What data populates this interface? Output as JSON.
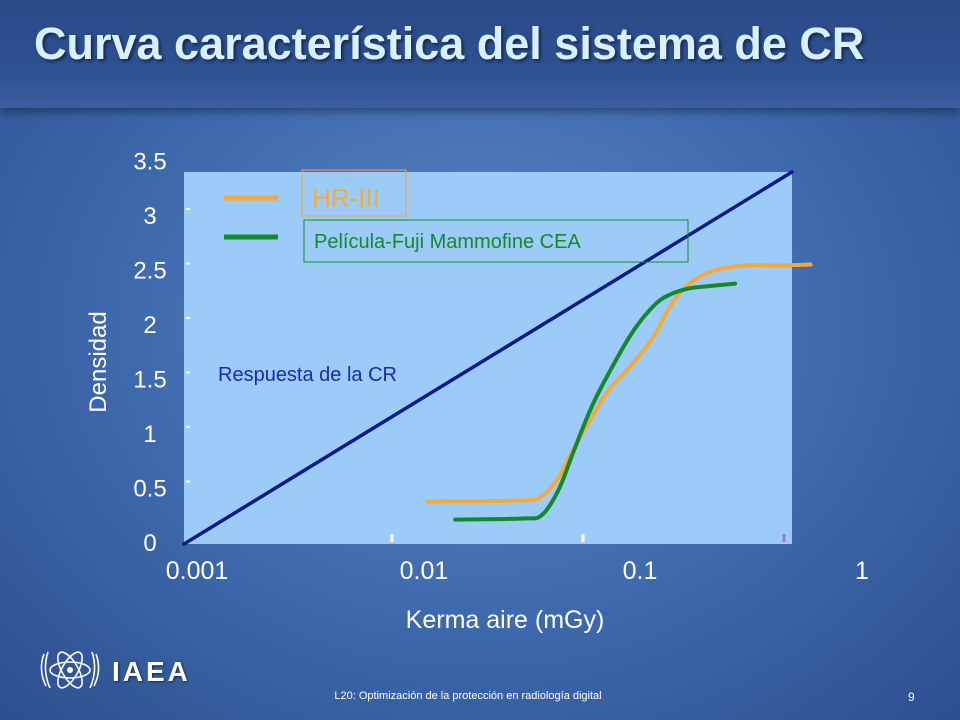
{
  "slide": {
    "title": "Curva característica del sistema de CR",
    "footer": "L20: Optimización de la protección en radiología digital",
    "page_number": "9",
    "logo_text": "IAEA"
  },
  "colors": {
    "plot_background": "#9ccbf7",
    "cr_line": "#0b1a8a",
    "hr3": "#f5a93a",
    "fuji": "#128a2c",
    "annotation_text": "#1a2ab0"
  },
  "chart_data": {
    "type": "line",
    "xscale": "log",
    "xlabel": "Kerma aire (mGy)",
    "ylabel": "Densidad",
    "xlim": [
      0.001,
      0.1
    ],
    "ylim": [
      0,
      3.5
    ],
    "xticks": [
      "0.001",
      "0.01",
      "0.1",
      "1"
    ],
    "yticks": [
      "0",
      "0.5",
      "1",
      "1.5",
      "2",
      "2.5",
      "3",
      "3.5"
    ],
    "legend_position": "top-left",
    "series": [
      {
        "name": "HR-III",
        "color": "#f5a93a",
        "points": [
          [
            0.0063,
            0.4
          ],
          [
            0.013,
            0.41
          ],
          [
            0.015,
            0.45
          ],
          [
            0.017,
            0.62
          ],
          [
            0.019,
            0.88
          ],
          [
            0.022,
            1.2
          ],
          [
            0.025,
            1.45
          ],
          [
            0.03,
            1.7
          ],
          [
            0.035,
            1.95
          ],
          [
            0.04,
            2.25
          ],
          [
            0.046,
            2.45
          ],
          [
            0.055,
            2.57
          ],
          [
            0.07,
            2.62
          ],
          [
            0.09,
            2.62
          ],
          [
            0.115,
            2.63
          ]
        ]
      },
      {
        "name": "Película-Fuji Mammofine CEA",
        "color": "#128a2c",
        "points": [
          [
            0.0078,
            0.23
          ],
          [
            0.013,
            0.24
          ],
          [
            0.015,
            0.27
          ],
          [
            0.017,
            0.5
          ],
          [
            0.019,
            0.85
          ],
          [
            0.022,
            1.3
          ],
          [
            0.026,
            1.7
          ],
          [
            0.03,
            2.0
          ],
          [
            0.034,
            2.2
          ],
          [
            0.038,
            2.32
          ],
          [
            0.045,
            2.4
          ],
          [
            0.055,
            2.43
          ],
          [
            0.065,
            2.45
          ]
        ]
      },
      {
        "name": "Respuesta de la CR",
        "color": "#0b1a8a",
        "points": [
          [
            0.001,
            0
          ],
          [
            0.1,
            3.5
          ]
        ]
      }
    ],
    "annotations": [
      "Respuesta de la CR"
    ]
  }
}
